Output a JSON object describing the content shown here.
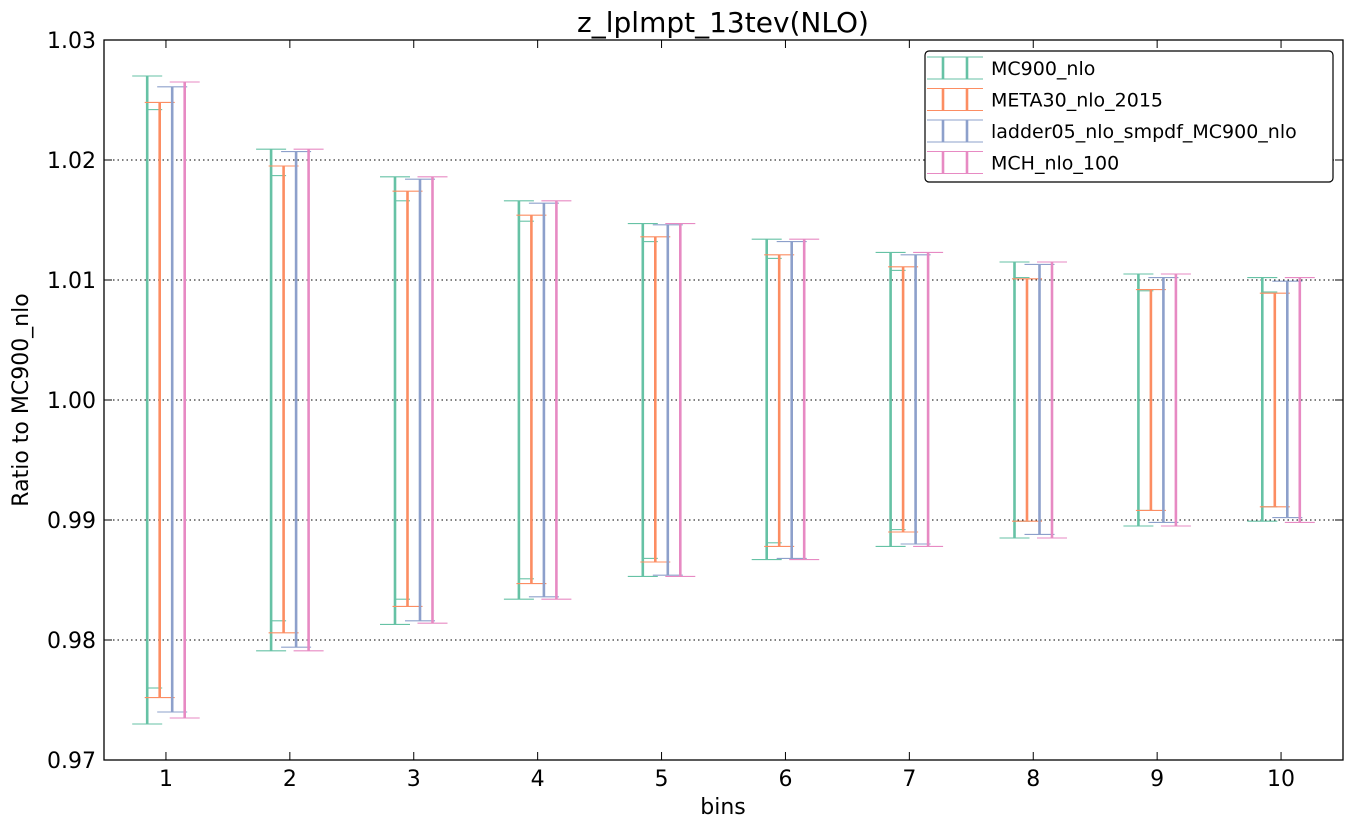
{
  "chart_data": {
    "type": "errorbar",
    "title": "z_lplmpt_13tev(NLO)",
    "xlabel": "bins",
    "ylabel": "Ratio to MC900_nlo",
    "ylim": [
      0.97,
      1.03
    ],
    "yticks": [
      "0.97",
      "0.98",
      "0.99",
      "1.00",
      "1.01",
      "1.02",
      "1.03"
    ],
    "categories": [
      "1",
      "2",
      "3",
      "4",
      "5",
      "6",
      "7",
      "8",
      "9",
      "10"
    ],
    "grid": "horizontal dotted",
    "legend_position": "top-right",
    "series": [
      {
        "name": "MC900_nlo",
        "color": "#66c2a5",
        "outer": [
          [
            0.973,
            1.027
          ],
          [
            0.9791,
            1.0209
          ],
          [
            0.9813,
            1.0186
          ],
          [
            0.9834,
            1.0166
          ],
          [
            0.9853,
            1.0147
          ],
          [
            0.9867,
            1.0134
          ],
          [
            0.9878,
            1.0123
          ],
          [
            0.9885,
            1.0115
          ],
          [
            0.9895,
            1.0105
          ],
          [
            0.9899,
            1.0102
          ]
        ],
        "inner": [
          [
            0.976,
            1.0242
          ],
          [
            0.9816,
            1.0187
          ],
          [
            0.9834,
            1.0166
          ],
          [
            0.9851,
            1.0149
          ],
          [
            0.9868,
            1.0132
          ],
          [
            0.9881,
            1.0118
          ],
          [
            0.9892,
            1.0108
          ],
          [
            0.9899,
            1.0102
          ],
          [
            0.9908,
            1.0091
          ],
          [
            0.9911,
            1.009
          ]
        ]
      },
      {
        "name": "META30_nlo_2015",
        "color": "#fc8d62",
        "outer": [
          [
            0.9752,
            1.0248
          ],
          [
            0.9806,
            1.0195
          ],
          [
            0.9828,
            1.0174
          ],
          [
            0.9847,
            1.0154
          ],
          [
            0.9865,
            1.0136
          ],
          [
            0.9878,
            1.0121
          ],
          [
            0.989,
            1.0111
          ],
          [
            0.9899,
            1.0101
          ],
          [
            0.9908,
            1.0092
          ],
          [
            0.9911,
            1.0089
          ]
        ]
      },
      {
        "name": "ladder05_nlo_smpdf_MC900_nlo",
        "color": "#8da0cb",
        "outer": [
          [
            0.974,
            1.0261
          ],
          [
            0.9794,
            1.0207
          ],
          [
            0.9816,
            1.0184
          ],
          [
            0.9836,
            1.0164
          ],
          [
            0.9854,
            1.0146
          ],
          [
            0.9868,
            1.0132
          ],
          [
            0.988,
            1.0121
          ],
          [
            0.9888,
            1.0113
          ],
          [
            0.9898,
            1.0102
          ],
          [
            0.9902,
            1.0099
          ]
        ]
      },
      {
        "name": "MCH_nlo_100",
        "color": "#e78ac3",
        "outer": [
          [
            0.9735,
            1.0265
          ],
          [
            0.9791,
            1.0209
          ],
          [
            0.9814,
            1.0186
          ],
          [
            0.9834,
            1.0166
          ],
          [
            0.9853,
            1.0147
          ],
          [
            0.9867,
            1.0134
          ],
          [
            0.9878,
            1.0123
          ],
          [
            0.9885,
            1.0115
          ],
          [
            0.9895,
            1.0105
          ],
          [
            0.9898,
            1.0102
          ]
        ]
      }
    ]
  }
}
